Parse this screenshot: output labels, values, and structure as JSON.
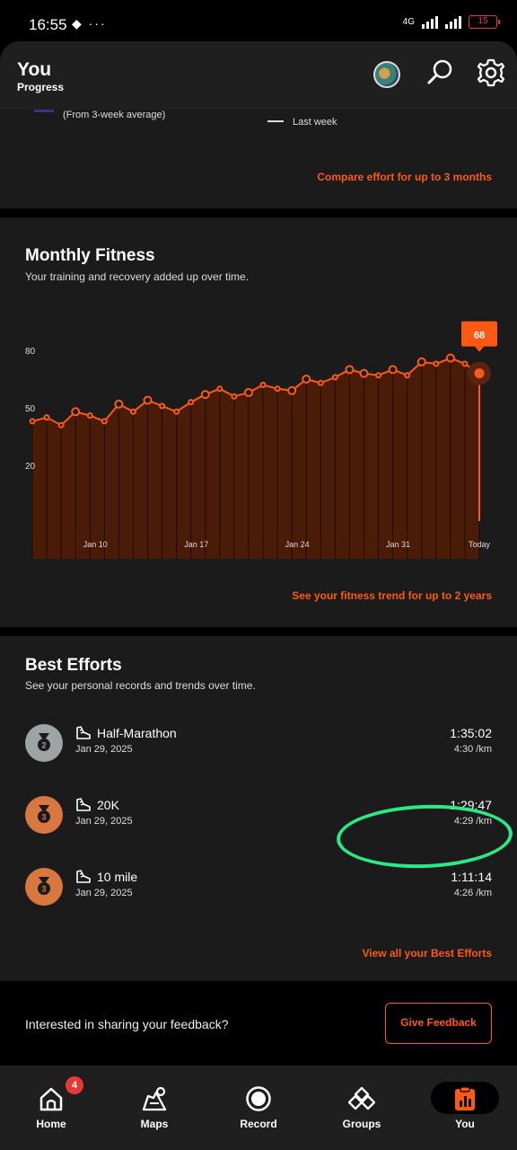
{
  "status_bar": {
    "time": "16:55",
    "network": "4G",
    "battery": "15"
  },
  "header": {
    "title": "You",
    "subtitle": "Progress"
  },
  "weekly_card": {
    "average_note": "(From 3-week average)",
    "legend_label": "Last week",
    "link": "Compare effort for up to 3 months"
  },
  "fitness_card": {
    "title": "Monthly Fitness",
    "description": "Your training and recovery added up over time.",
    "link": "See your fitness trend for up to 2 years",
    "current_value": "68"
  },
  "chart_data": {
    "type": "area",
    "y_ticks": [
      "80",
      "50",
      "20"
    ],
    "x_tick_labels": [
      "Jan 10",
      "Jan 17",
      "Jan 24",
      "Jan 31",
      "Today"
    ],
    "x": [
      0,
      1,
      2,
      3,
      4,
      5,
      6,
      7,
      8,
      9,
      10,
      11,
      12,
      13,
      14,
      15,
      16,
      17,
      18,
      19,
      20,
      21,
      22,
      23,
      24,
      25,
      26,
      27,
      28,
      29,
      30,
      31
    ],
    "values": [
      43,
      45,
      41,
      48,
      46,
      43,
      52,
      48,
      54,
      51,
      48,
      53,
      57,
      60,
      56,
      58,
      62,
      60,
      59,
      65,
      63,
      66,
      70,
      68,
      67,
      70,
      67,
      74,
      73,
      76,
      73,
      68
    ],
    "ylim": [
      0,
      80
    ],
    "color": "#fc5a14"
  },
  "best_efforts": {
    "title": "Best Efforts",
    "description": "See your personal records and trends over time.",
    "items": [
      {
        "rank": "2",
        "name": "Half-Marathon",
        "date": "Jan 29, 2025",
        "time": "1:35:02",
        "pace": "4:30 /km",
        "medal_color": "#9ea4a6"
      },
      {
        "rank": "3",
        "name": "20K",
        "date": "Jan 29, 2025",
        "time": "1:29:47",
        "pace": "4:29 /km",
        "medal_color": "#d8773f"
      },
      {
        "rank": "3",
        "name": "10 mile",
        "date": "Jan 29, 2025",
        "time": "1:11:14",
        "pace": "4:26 /km",
        "medal_color": "#d8773f"
      }
    ],
    "link": "View all your Best Efforts"
  },
  "feedback": {
    "prompt": "Interested in sharing your feedback?",
    "button": "Give Feedback"
  },
  "tabbar": {
    "home": "Home",
    "home_badge": "4",
    "maps": "Maps",
    "record": "Record",
    "groups": "Groups",
    "you": "You"
  },
  "colors": {
    "accent": "#fc5a14",
    "highlight": "#2bea83",
    "card_bg": "#1b1b1b"
  }
}
